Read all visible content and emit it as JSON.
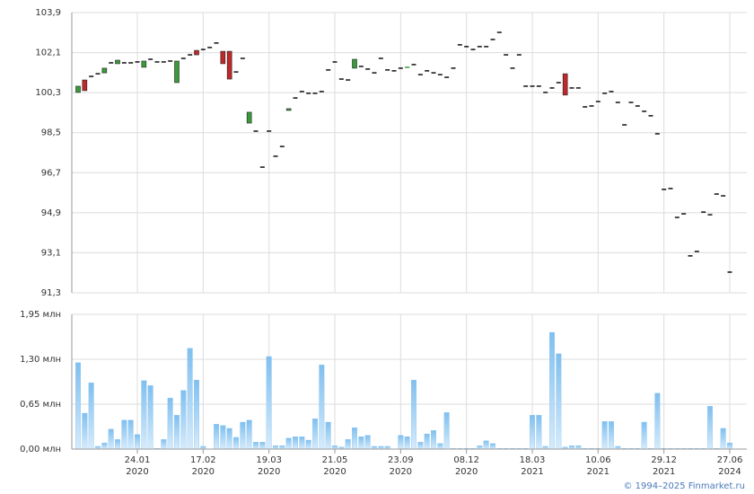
{
  "chart_data": [
    {
      "type": "candlestick",
      "up_color": "#3a9a3a",
      "down_color": "#c0282a",
      "flat_color": "#111111",
      "ylim": [
        91.3,
        103.9
      ],
      "yticks": [
        {
          "value": 91.3,
          "label": "91,3"
        },
        {
          "value": 93.1,
          "label": "93,1"
        },
        {
          "value": 94.9,
          "label": "94,9"
        },
        {
          "value": 96.7,
          "label": "96,7"
        },
        {
          "value": 98.5,
          "label": "98,5"
        },
        {
          "value": 100.3,
          "label": "100,3"
        },
        {
          "value": 102.1,
          "label": "102,1"
        },
        {
          "value": 103.9,
          "label": "103,9"
        }
      ],
      "grid": true,
      "open": [
        100.31,
        100.87,
        101.03,
        101.15,
        101.19,
        101.64,
        101.6,
        101.64,
        101.64,
        101.68,
        101.44,
        101.8,
        101.68,
        101.68,
        101.72,
        100.75,
        101.84,
        102.0,
        102.2,
        102.24,
        102.33,
        102.53,
        102.16,
        102.16,
        101.23,
        101.84,
        98.93,
        98.57,
        96.95,
        98.57,
        97.44,
        97.88,
        99.5,
        100.06,
        100.35,
        100.27,
        100.27,
        100.35,
        101.32,
        101.68,
        100.91,
        100.87,
        101.4,
        101.48,
        101.36,
        101.19,
        101.84,
        101.32,
        101.28,
        101.4,
        101.4,
        101.56,
        101.11,
        101.28,
        101.19,
        101.11,
        100.99,
        101.4,
        102.45,
        102.37,
        102.24,
        102.37,
        102.37,
        102.69,
        103.01,
        102.0,
        101.4,
        102.0,
        100.59,
        100.59,
        100.59,
        100.31,
        100.51,
        100.75,
        101.15,
        100.51,
        100.51,
        99.66,
        99.7,
        99.9,
        100.27,
        100.35,
        99.86,
        98.85,
        99.86,
        99.7,
        99.46,
        99.26,
        98.45,
        95.95,
        95.99,
        94.69,
        94.85,
        92.96,
        93.16,
        94.93,
        94.81,
        95.74,
        95.66,
        92.23
      ],
      "close": [
        100.59,
        100.39,
        101.03,
        101.15,
        101.4,
        101.64,
        101.76,
        101.64,
        101.64,
        101.68,
        101.72,
        101.8,
        101.68,
        101.68,
        101.72,
        101.72,
        101.84,
        102.0,
        102.0,
        102.24,
        102.33,
        102.53,
        101.6,
        100.91,
        101.23,
        101.84,
        99.42,
        98.57,
        96.95,
        98.57,
        97.44,
        97.88,
        99.58,
        100.06,
        100.35,
        100.27,
        100.27,
        100.35,
        101.32,
        101.68,
        100.91,
        100.87,
        101.8,
        101.48,
        101.36,
        101.19,
        101.84,
        101.32,
        101.28,
        101.4,
        101.44,
        101.56,
        101.11,
        101.28,
        101.19,
        101.11,
        100.99,
        101.4,
        102.45,
        102.37,
        102.24,
        102.37,
        102.37,
        102.69,
        103.01,
        102.0,
        101.4,
        102.0,
        100.59,
        100.59,
        100.59,
        100.31,
        100.51,
        100.75,
        100.19,
        100.51,
        100.51,
        99.66,
        99.7,
        99.9,
        100.27,
        100.35,
        99.86,
        98.85,
        99.86,
        99.7,
        99.46,
        99.26,
        98.45,
        95.95,
        95.99,
        94.69,
        94.85,
        92.96,
        93.16,
        94.93,
        94.81,
        95.74,
        95.66,
        92.23
      ]
    },
    {
      "type": "bar",
      "color": "#7fbfef",
      "categories": [
        null,
        null,
        null,
        null,
        null,
        null,
        null,
        null,
        null,
        "24.01",
        null,
        null,
        null,
        null,
        null,
        null,
        null,
        null,
        null,
        "17.02",
        null,
        null,
        null,
        null,
        null,
        null,
        null,
        null,
        null,
        "19.03",
        null,
        null,
        null,
        null,
        null,
        null,
        null,
        null,
        null,
        "21.05",
        null,
        null,
        null,
        null,
        null,
        null,
        null,
        null,
        null,
        "23.09",
        null,
        null,
        null,
        null,
        null,
        null,
        null,
        null,
        null,
        "08.12",
        null,
        null,
        null,
        null,
        null,
        null,
        null,
        null,
        null,
        "18.03",
        null,
        null,
        null,
        null,
        null,
        null,
        null,
        null,
        null,
        "10.06",
        null,
        null,
        null,
        null,
        null,
        null,
        null,
        null,
        null,
        "29.12",
        null,
        null,
        null,
        null,
        null,
        null,
        null,
        null,
        null,
        "27.06"
      ],
      "category_years": [
        null,
        null,
        null,
        null,
        null,
        null,
        null,
        null,
        null,
        "2020",
        null,
        null,
        null,
        null,
        null,
        null,
        null,
        null,
        null,
        "2020",
        null,
        null,
        null,
        null,
        null,
        null,
        null,
        null,
        null,
        "2020",
        null,
        null,
        null,
        null,
        null,
        null,
        null,
        null,
        null,
        "2020",
        null,
        null,
        null,
        null,
        null,
        null,
        null,
        null,
        null,
        "2020",
        null,
        null,
        null,
        null,
        null,
        null,
        null,
        null,
        null,
        "2020",
        null,
        null,
        null,
        null,
        null,
        null,
        null,
        null,
        null,
        "2021",
        null,
        null,
        null,
        null,
        null,
        null,
        null,
        null,
        null,
        "2021",
        null,
        null,
        null,
        null,
        null,
        null,
        null,
        null,
        null,
        "2021",
        null,
        null,
        null,
        null,
        null,
        null,
        null,
        null,
        null,
        "2024"
      ],
      "values": [
        1.25,
        0.52,
        0.96,
        0.04,
        0.09,
        0.29,
        0.14,
        0.42,
        0.42,
        0.21,
        0.99,
        0.92,
        0.01,
        0.14,
        0.74,
        0.49,
        0.85,
        1.46,
        1.0,
        0.04,
        0,
        0.36,
        0.34,
        0.3,
        0.17,
        0.39,
        0.42,
        0.1,
        0.1,
        1.34,
        0.05,
        0.05,
        0.16,
        0.18,
        0.18,
        0.13,
        0.44,
        1.22,
        0.39,
        0.05,
        0.03,
        0.14,
        0.31,
        0.18,
        0.2,
        0.04,
        0.04,
        0.04,
        0,
        0.2,
        0.18,
        1.0,
        0.1,
        0.22,
        0.27,
        0.08,
        0.53,
        0.01,
        0.01,
        0.01,
        0.01,
        0.05,
        0.12,
        0.08,
        0.01,
        0.01,
        0.01,
        0.01,
        0.01,
        0.49,
        0.49,
        0.04,
        1.69,
        1.38,
        0.03,
        0.05,
        0.05,
        0.01,
        0.01,
        0.01,
        0.4,
        0.4,
        0.04,
        0.01,
        0.01,
        0.01,
        0.39,
        0.01,
        0.81,
        0.01,
        0.01,
        0.01,
        0.01,
        0.01,
        0.01,
        0.01,
        0.62,
        0.01,
        0.3,
        0.09
      ],
      "ylim": [
        0,
        1.95
      ],
      "yticks": [
        {
          "value": 0,
          "label": "0,00 млн"
        },
        {
          "value": 0.65,
          "label": "0,65 млн"
        },
        {
          "value": 1.3,
          "label": "1,30 млн"
        },
        {
          "value": 1.95,
          "label": "1,95 млн"
        }
      ],
      "grid": true
    }
  ],
  "footer": "© 1994–2025 Finmarket.ru"
}
